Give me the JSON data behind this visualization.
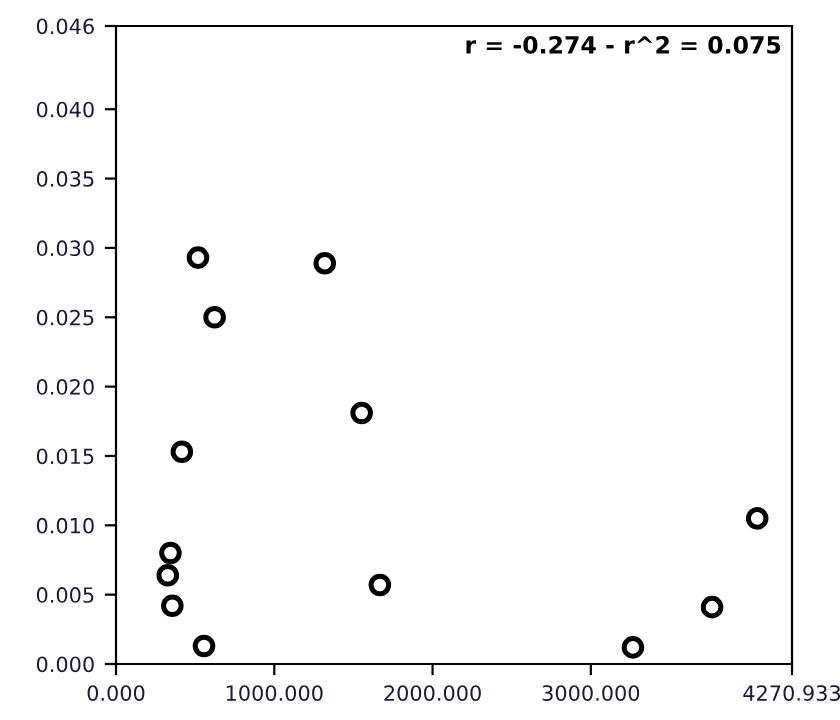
{
  "chart_data": {
    "type": "scatter",
    "annotations": [
      "r = -0.274 - r^2 = 0.075"
    ],
    "x": [
      518,
      1319,
      623,
      1552,
      416,
      344,
      327,
      1667,
      356,
      556,
      4051,
      3766,
      3266
    ],
    "values": [
      0.0293,
      0.0289,
      0.025,
      0.0181,
      0.0153,
      0.008,
      0.0064,
      0.0057,
      0.0042,
      0.0013,
      0.0105,
      0.0041,
      0.0012
    ],
    "color": "#000000",
    "marker": "circle",
    "xlim": [
      0,
      4270.933
    ],
    "xticks": [
      {
        "value": 0,
        "label": "0.000"
      },
      {
        "value": 1000,
        "label": "1000.000"
      },
      {
        "value": 2000,
        "label": "2000.000"
      },
      {
        "value": 3000,
        "label": "3000.000"
      },
      {
        "value": 4270.933,
        "label": "4270.933"
      }
    ],
    "ylim": [
      0,
      0.046
    ],
    "yticks": [
      {
        "value": 0,
        "label": "0.000"
      },
      {
        "value": 0.005,
        "label": "0.005"
      },
      {
        "value": 0.01,
        "label": "0.010"
      },
      {
        "value": 0.015,
        "label": "0.015"
      },
      {
        "value": 0.02,
        "label": "0.020"
      },
      {
        "value": 0.025,
        "label": "0.025"
      },
      {
        "value": 0.03,
        "label": "0.030"
      },
      {
        "value": 0.035,
        "label": "0.035"
      },
      {
        "value": 0.04,
        "label": "0.040"
      },
      {
        "value": 0.046,
        "label": "0.046"
      }
    ],
    "grid": false
  }
}
